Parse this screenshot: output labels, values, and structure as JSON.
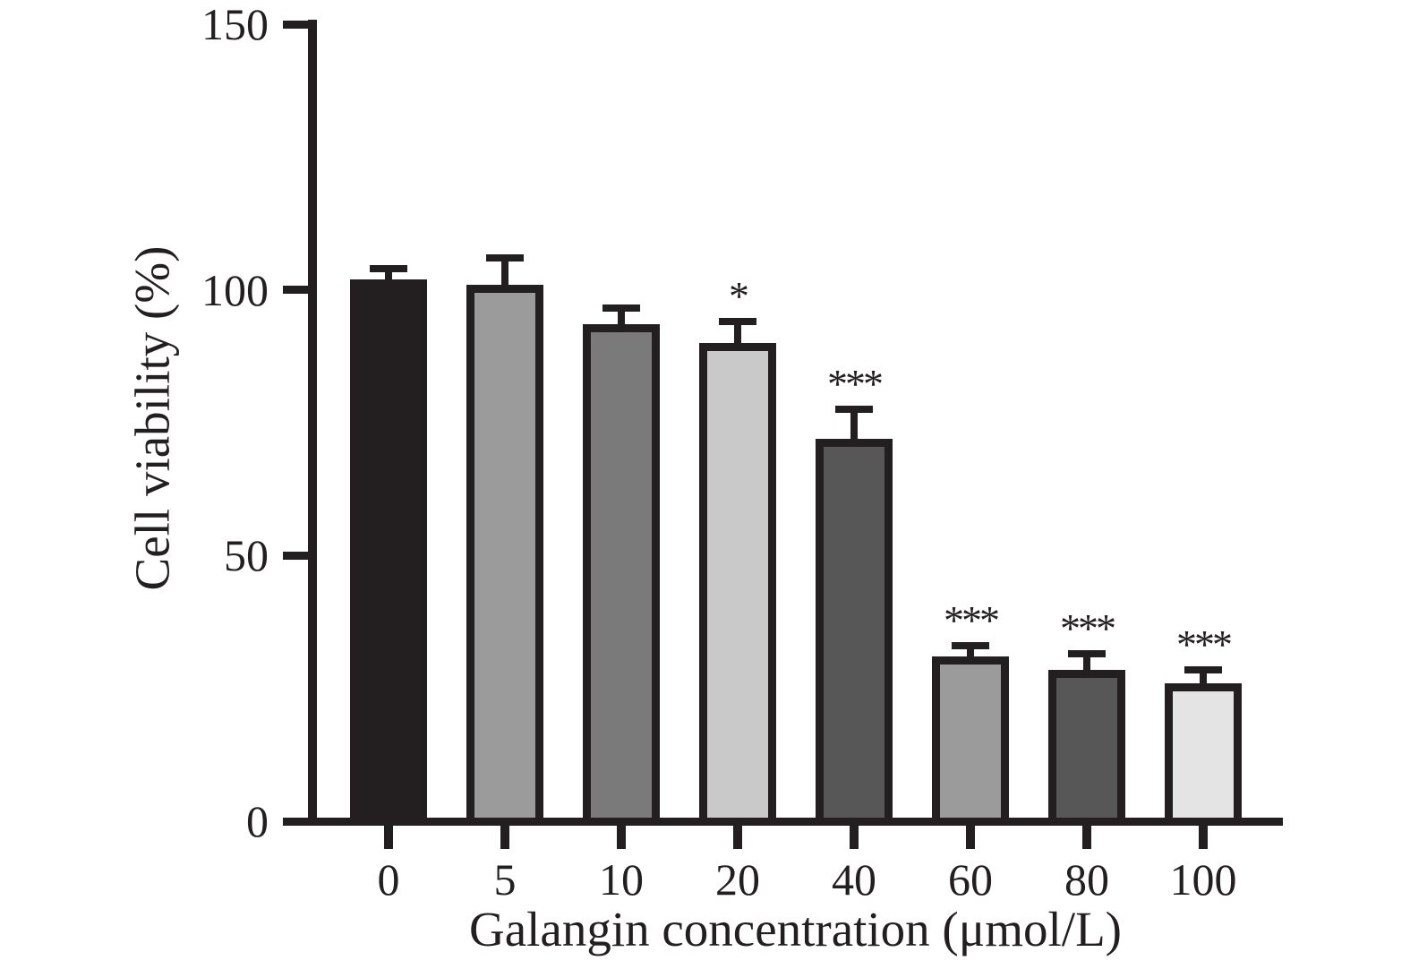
{
  "chart_data": {
    "type": "bar",
    "title": "",
    "xlabel": "Galangin concentration (μmol/L)",
    "ylabel": "Cell viability (%)",
    "categories": [
      "0",
      "5",
      "10",
      "20",
      "40",
      "60",
      "80",
      "100"
    ],
    "values": [
      102,
      101,
      93.5,
      90,
      72,
      31,
      28.5,
      26
    ],
    "errors_plus": [
      2,
      5,
      3,
      4,
      5.5,
      2,
      3,
      2.5
    ],
    "significance": [
      "",
      "",
      "",
      "*",
      "***",
      "***",
      "***",
      "***"
    ],
    "bar_colors": [
      "#231f20",
      "#9b9b9b",
      "#7a7a7a",
      "#c9c9c9",
      "#575757",
      "#9b9b9b",
      "#575757",
      "#e4e4e4"
    ],
    "bar_border_color": "#231f20",
    "axis_color": "#231f20",
    "ylim": [
      0,
      150
    ],
    "yticks": [
      0,
      50,
      100,
      150
    ],
    "grid": false,
    "legend": "none",
    "error_bar_style": "upper SD with cap"
  }
}
